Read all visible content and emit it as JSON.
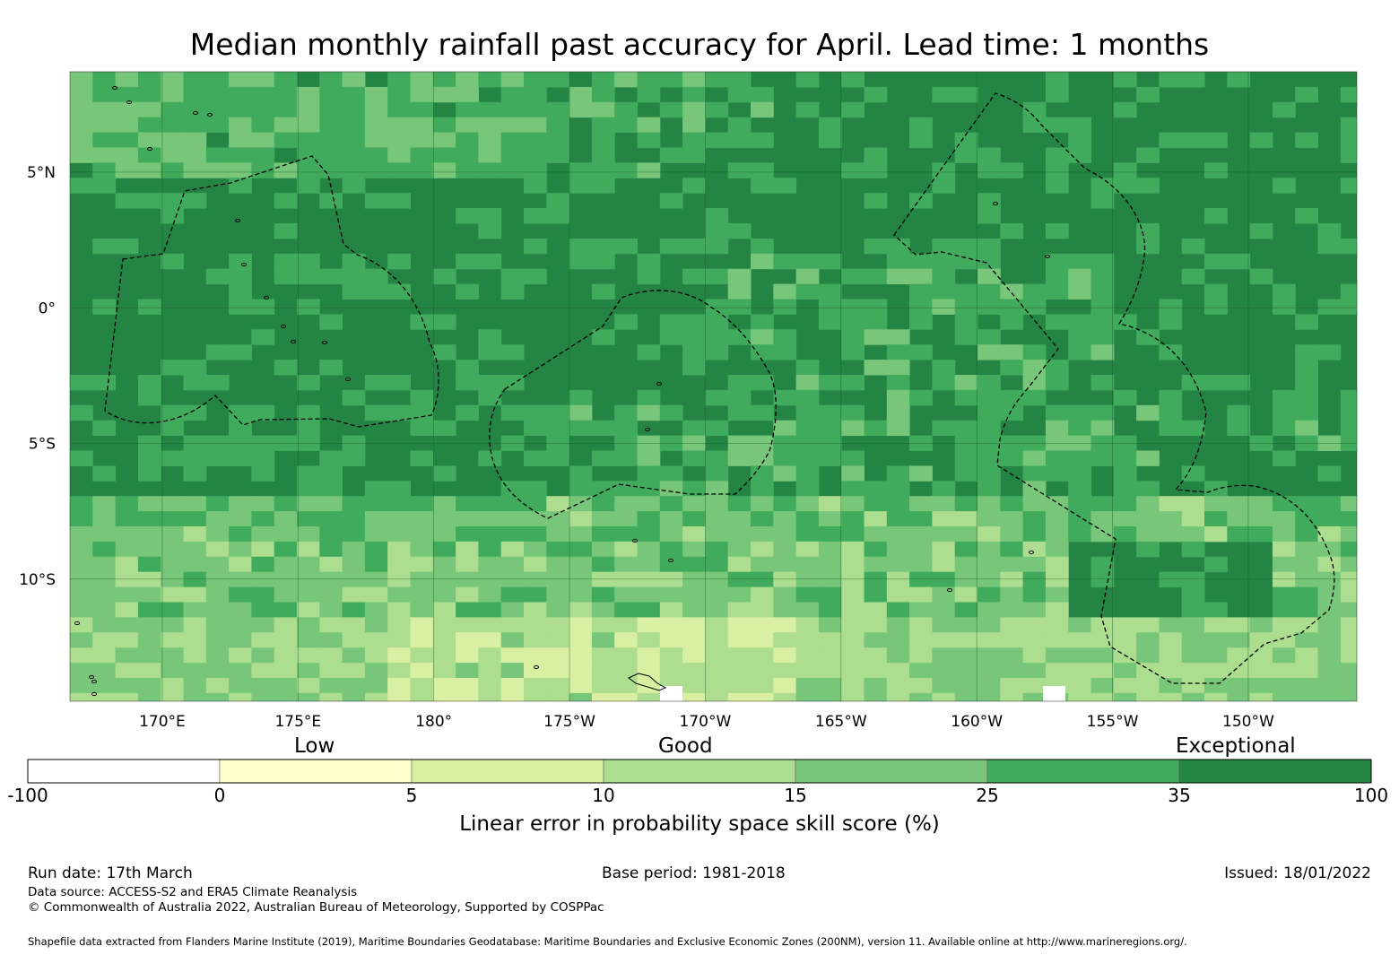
{
  "title": "Median monthly rainfall past accuracy for April. Lead time: 1 months",
  "map": {
    "lat_labels": [
      "5°N",
      "0°",
      "5°S",
      "10°S"
    ],
    "lon_labels": [
      "170°E",
      "175°E",
      "180°",
      "175°W",
      "170°W",
      "165°W",
      "160°W",
      "155°W",
      "150°W"
    ],
    "lat_values": [
      5,
      0,
      -5,
      -10
    ],
    "lon_values": [
      170,
      175,
      180,
      185,
      190,
      195,
      200,
      205,
      210
    ],
    "lon_range": [
      166.6,
      214
    ],
    "lat_range": [
      -14.5,
      8.7
    ],
    "regions_shown": [
      "Kiribati Gilbert Islands EEZ",
      "Phoenix Islands EEZ",
      "Line Islands EEZ",
      "Tokelau EEZ",
      "Cook Islands EEZ"
    ]
  },
  "legend": {
    "categories": [
      "Low",
      "Good",
      "Exceptional"
    ],
    "ticks": [
      "-100",
      "0",
      "5",
      "10",
      "15",
      "25",
      "35",
      "100"
    ],
    "colors": [
      "#ffffff",
      "#ffffcc",
      "#d9f0a3",
      "#addd8e",
      "#78c679",
      "#41ab5d",
      "#238443"
    ],
    "label": "Linear error in probability space skill score (%)"
  },
  "footer": {
    "run_date": "Run date: 17th March",
    "base_period": "Base period: 1981-2018",
    "issued": "Issued: 18/01/2022",
    "data_source": "Data source: ACCESS-S2 and ERA5 Climate Reanalysis",
    "copyright": "© Commonwealth of Australia 2022, Australian Bureau of Meteorology, Supported by COSPPac",
    "shapefile": "Shapefile data extracted from Flanders Marine Institute (2019), Maritime Boundaries Geodatabase: Maritime Boundaries and Exclusive Economic Zones (200NM), version 11. Available online at http://www.marineregions.org/."
  }
}
